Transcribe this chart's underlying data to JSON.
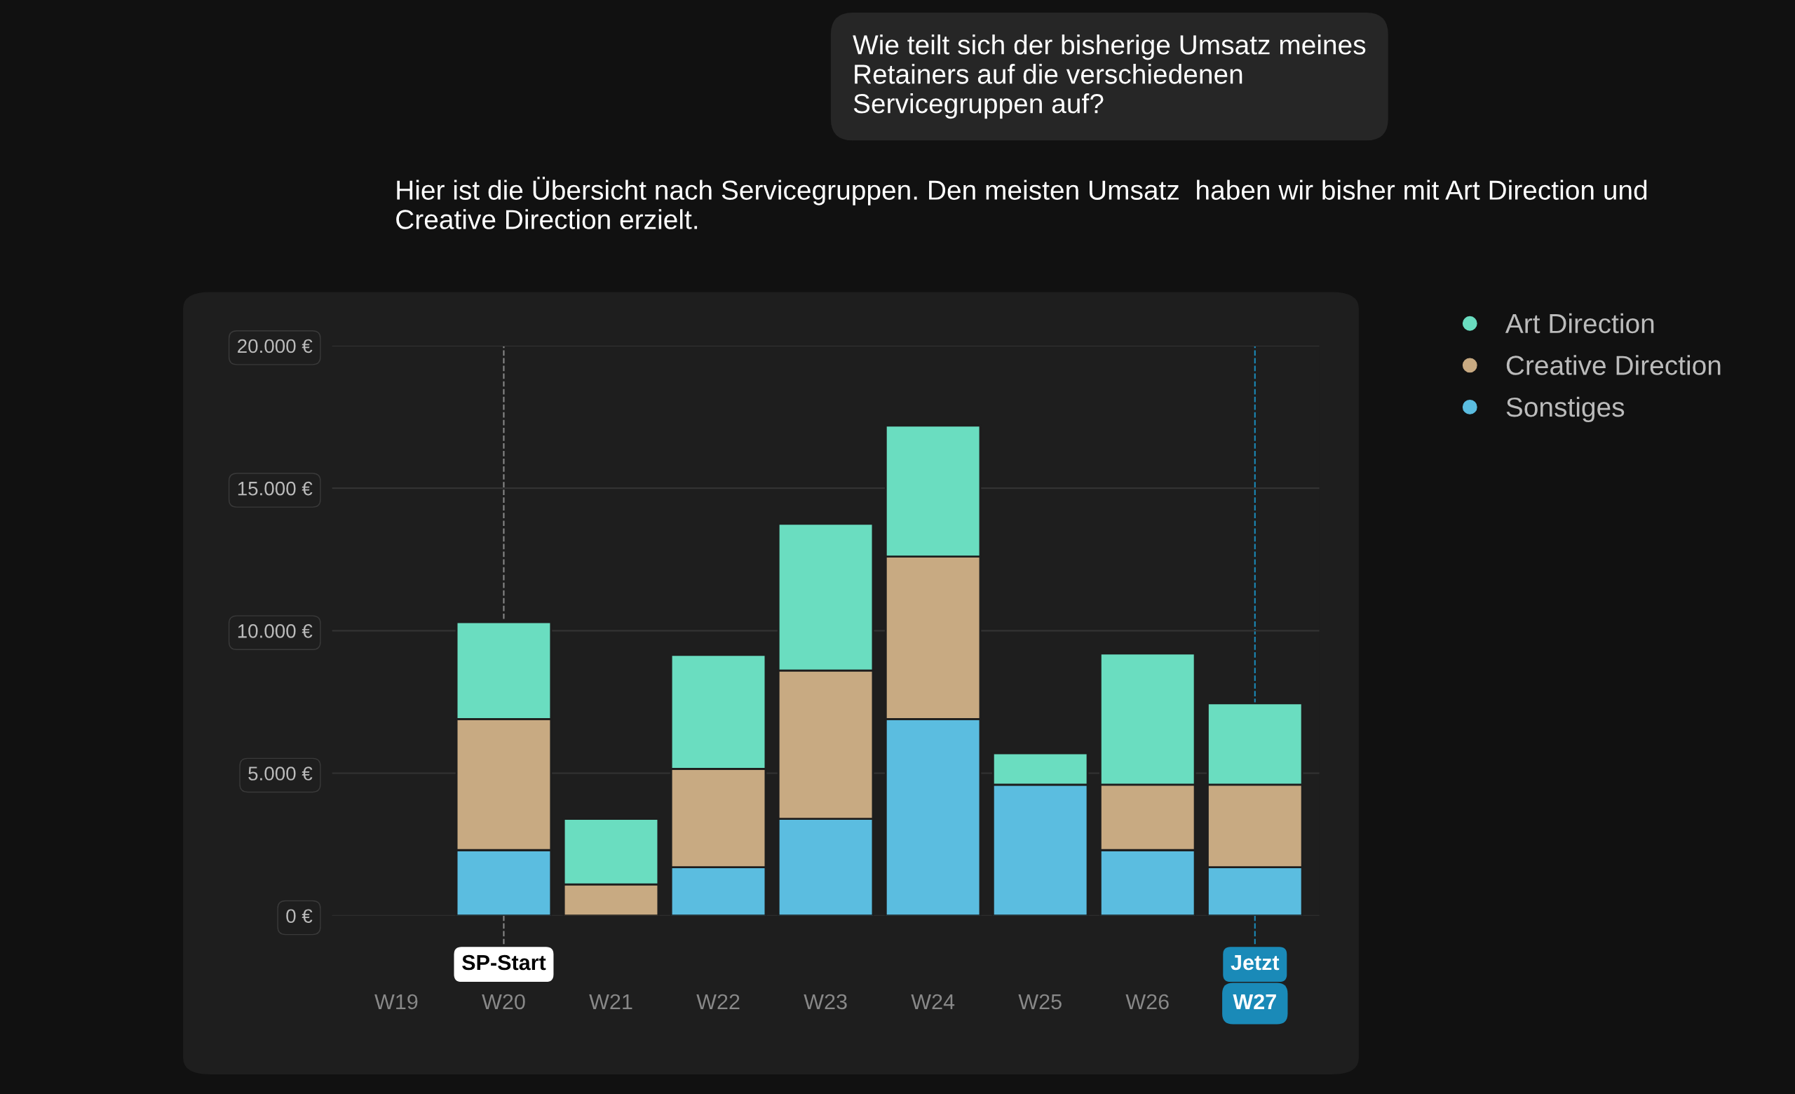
{
  "chart_data": {
    "type": "bar",
    "stacked": true,
    "title": "Wie teilt sich der bisherige Umsatz meines Retainers auf die verschiedenen Servicegruppen auf?",
    "subtitle": "Hier ist die Übersicht nach Servicegruppen. Den meisten Umsatz  haben wir bisher mit Art Direction und Creative Direction erzielt.",
    "categories": [
      "W19",
      "W20",
      "W21",
      "W22",
      "W23",
      "W24",
      "W25",
      "W26",
      "W27"
    ],
    "series": [
      {
        "name": "Sonstiges",
        "color": "#5bbde0",
        "values": [
          null,
          2300,
          0,
          1700,
          3400,
          6900,
          4600,
          2300,
          1700
        ]
      },
      {
        "name": "Creative Direction",
        "color": "#c8aa82",
        "values": [
          null,
          4600,
          1100,
          3450,
          5200,
          5700,
          0,
          2300,
          2900
        ]
      },
      {
        "name": "Art Direction",
        "color": "#6addc0",
        "values": [
          null,
          3400,
          2300,
          4000,
          5150,
          4600,
          1100,
          4600,
          2850
        ]
      }
    ],
    "ylim": [
      0,
      20000
    ],
    "yticks": [
      {
        "value": 0,
        "label": "0 €"
      },
      {
        "value": 5000,
        "label": "5.000 €"
      },
      {
        "value": 10000,
        "label": "10.000 €"
      },
      {
        "value": 15000,
        "label": "15.000 €"
      },
      {
        "value": 20000,
        "label": "20.000 €"
      }
    ],
    "ref_lines": [
      {
        "axis": "x",
        "value": "W20",
        "label": "SP-Start",
        "color": "#888888",
        "line_style": "dashed"
      },
      {
        "axis": "x",
        "value": "W27",
        "label": "Jetzt",
        "color": "#1a8ab8",
        "line_style": "dashed"
      }
    ],
    "grid": "y",
    "legend": "top right"
  }
}
